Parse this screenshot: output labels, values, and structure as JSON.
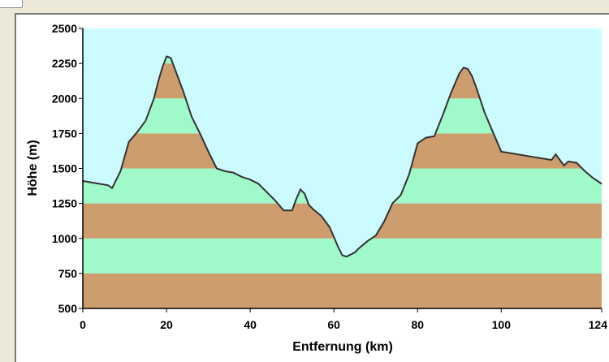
{
  "chart_data": {
    "type": "area",
    "xlabel": "Entfernung (km)",
    "ylabel": "Höhe (m)",
    "xlim": [
      0,
      124
    ],
    "ylim": [
      500,
      2500
    ],
    "x_ticks": [
      0,
      20,
      40,
      60,
      80,
      100,
      124
    ],
    "y_ticks": [
      500,
      750,
      1000,
      1250,
      1500,
      1750,
      2000,
      2250,
      2500
    ],
    "band_step": 250,
    "colors": {
      "sky": "#ccfbff",
      "band_brown": "#cd9d6e",
      "band_green": "#9ff9c9",
      "line": "#333333"
    },
    "series": [
      {
        "x": [
          0,
          3,
          6,
          7,
          9,
          11,
          13,
          15,
          17,
          18,
          19,
          20,
          21,
          22,
          24,
          26,
          28,
          30,
          32,
          34,
          36,
          38,
          40,
          42,
          44,
          46,
          48,
          50,
          51,
          52,
          53,
          54,
          55,
          57,
          59,
          60,
          61,
          62,
          63,
          65,
          66,
          68,
          70,
          72,
          74,
          76,
          78,
          80,
          82,
          84,
          86,
          88,
          90,
          91,
          92,
          93,
          94,
          96,
          98,
          100,
          102,
          104,
          106,
          108,
          110,
          112,
          113,
          114,
          115,
          116,
          118,
          120,
          122,
          124
        ],
        "y": [
          1410,
          1395,
          1380,
          1360,
          1480,
          1690,
          1760,
          1840,
          2000,
          2120,
          2220,
          2300,
          2290,
          2210,
          2050,
          1870,
          1750,
          1620,
          1500,
          1480,
          1470,
          1440,
          1420,
          1390,
          1330,
          1270,
          1200,
          1200,
          1280,
          1350,
          1320,
          1240,
          1210,
          1160,
          1080,
          1010,
          940,
          880,
          870,
          900,
          930,
          980,
          1020,
          1120,
          1250,
          1310,
          1460,
          1680,
          1720,
          1730,
          1880,
          2040,
          2180,
          2220,
          2210,
          2160,
          2080,
          1900,
          1760,
          1620,
          1610,
          1600,
          1590,
          1580,
          1570,
          1560,
          1600,
          1560,
          1520,
          1550,
          1540,
          1480,
          1430,
          1390
        ]
      }
    ]
  }
}
